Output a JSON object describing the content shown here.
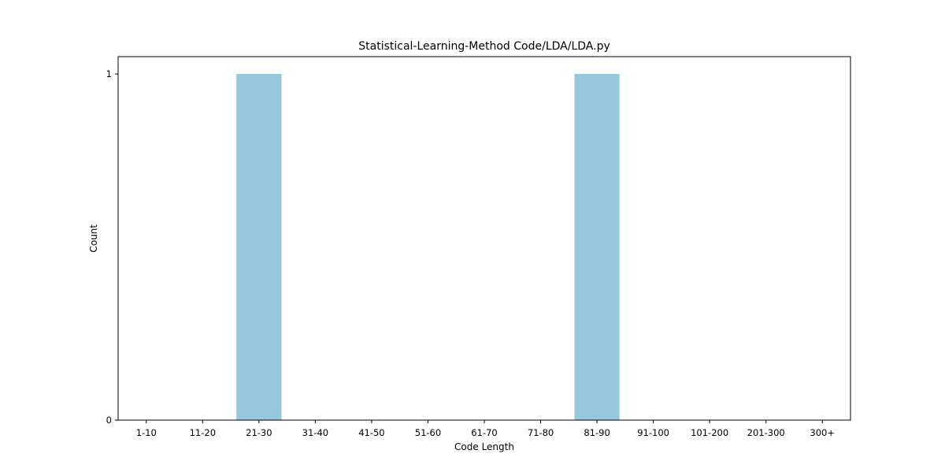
{
  "chart_data": {
    "type": "bar",
    "title": "Statistical-Learning-Method Code/LDA/LDA.py",
    "xlabel": "Code Length",
    "ylabel": "Count",
    "categories": [
      "1-10",
      "11-20",
      "21-30",
      "31-40",
      "41-50",
      "51-60",
      "61-70",
      "71-80",
      "81-90",
      "91-100",
      "101-200",
      "201-300",
      "300+"
    ],
    "values": [
      0,
      0,
      1,
      0,
      0,
      0,
      0,
      0,
      1,
      0,
      0,
      0,
      0
    ],
    "yticks": [
      "0",
      "1"
    ],
    "ylim": [
      0,
      1.05
    ],
    "bar_color": "#96c8dc",
    "grid": false,
    "legend": "none"
  }
}
